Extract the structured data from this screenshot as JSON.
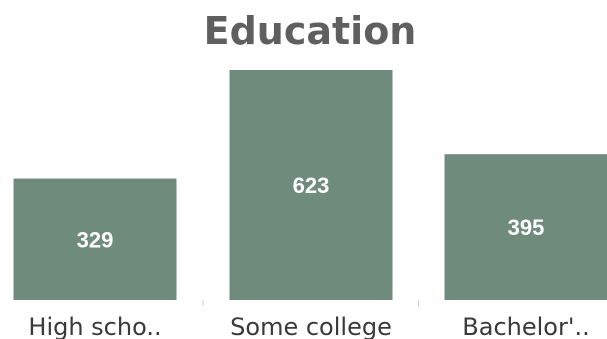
{
  "chart_data": {
    "type": "bar",
    "title": "Education",
    "categories": [
      "High scho..",
      "Some college",
      "Bachelor'.."
    ],
    "values": [
      329,
      623,
      395
    ],
    "xlabel": "",
    "ylabel": "",
    "ylim": [
      0,
      623
    ],
    "grid": false,
    "legend": "none",
    "bar_color": "#6e8b7c",
    "title_color": "#5f5f5f"
  }
}
